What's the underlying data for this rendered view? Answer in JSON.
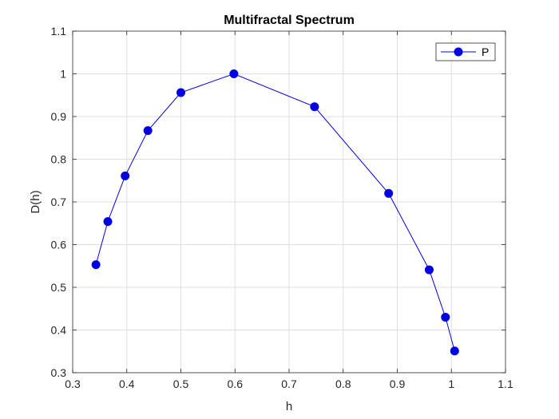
{
  "chart_data": {
    "type": "line",
    "title": "Multifractal Spectrum",
    "xlabel": "h",
    "ylabel": "D(h)",
    "xlim": [
      0.3,
      1.1
    ],
    "ylim": [
      0.3,
      1.1
    ],
    "xticks": [
      0.3,
      0.4,
      0.5,
      0.6,
      0.7,
      0.8,
      0.9,
      1.0,
      1.1
    ],
    "xtick_labels": [
      "0.3",
      "0.4",
      "0.5",
      "0.6",
      "0.7",
      "0.8",
      "0.9",
      "1",
      "1.1"
    ],
    "yticks": [
      0.3,
      0.4,
      0.5,
      0.6,
      0.7,
      0.8,
      0.9,
      1.0,
      1.1
    ],
    "ytick_labels": [
      "0.3",
      "0.4",
      "0.5",
      "0.6",
      "0.7",
      "0.8",
      "0.9",
      "1",
      "1.1"
    ],
    "grid": true,
    "legend_position": "top-right",
    "series": [
      {
        "name": "P",
        "color": "#0000e0",
        "marker": "circle",
        "points": [
          {
            "x": 0.343,
            "y": 0.553
          },
          {
            "x": 0.365,
            "y": 0.654
          },
          {
            "x": 0.397,
            "y": 0.761
          },
          {
            "x": 0.439,
            "y": 0.867
          },
          {
            "x": 0.5,
            "y": 0.956
          },
          {
            "x": 0.598,
            "y": 1.0
          },
          {
            "x": 0.747,
            "y": 0.923
          },
          {
            "x": 0.884,
            "y": 0.72
          },
          {
            "x": 0.959,
            "y": 0.541
          },
          {
            "x": 0.989,
            "y": 0.43
          },
          {
            "x": 1.006,
            "y": 0.351
          }
        ]
      }
    ]
  }
}
